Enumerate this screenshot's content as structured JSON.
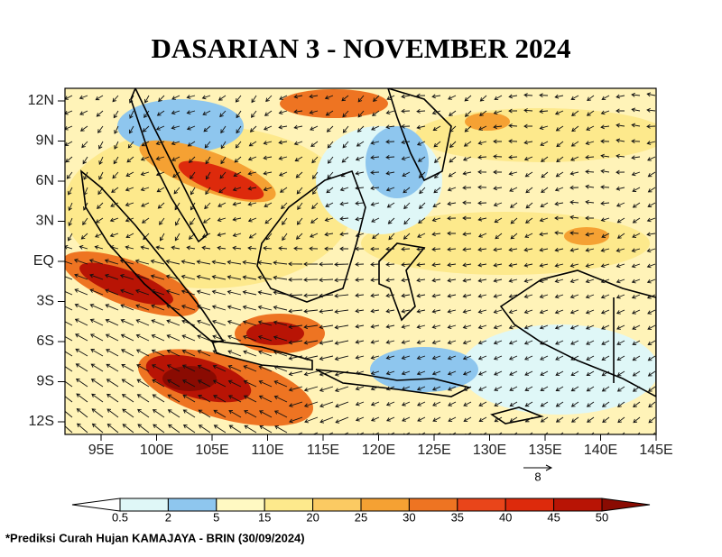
{
  "title": "DASARIAN 3 - NOVEMBER 2024",
  "lat_labels": [
    "12N",
    "9N",
    "6N",
    "3N",
    "EQ",
    "3S",
    "6S",
    "9S",
    "12S"
  ],
  "lon_labels": [
    "95E",
    "100E",
    "105E",
    "110E",
    "115E",
    "120E",
    "125E",
    "130E",
    "135E",
    "140E",
    "145E"
  ],
  "vector_reference": "8",
  "colorbar": {
    "levels": [
      0.5,
      2,
      5,
      15,
      20,
      25,
      30,
      35,
      40,
      45,
      50
    ],
    "colors": [
      "#ffffff",
      "#dff7f7",
      "#8ec6ee",
      "#fff9c2",
      "#fde98c",
      "#fbca62",
      "#f5a133",
      "#ee7422",
      "#e9451a",
      "#dd2a0c",
      "#b81405",
      "#8a0b02"
    ]
  },
  "footer": "*Prediksi Curah Hujan KAMAJAYA - BRIN (30/09/2024)"
}
